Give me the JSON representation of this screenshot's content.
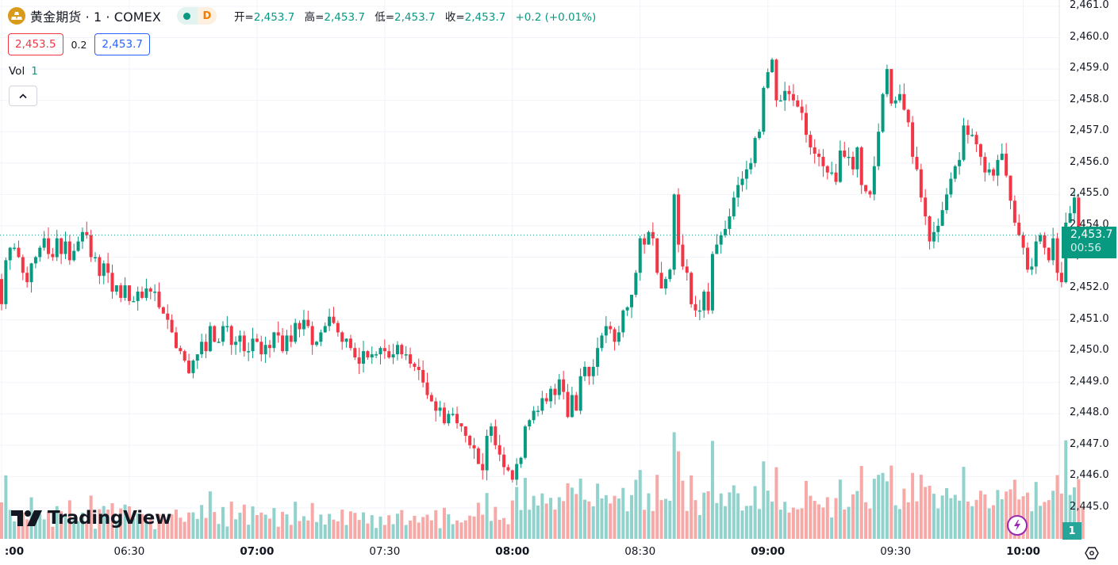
{
  "header": {
    "symbol_title": "黄金期货 · 1 · COMEX",
    "symbol_icon": "gold-bars-icon",
    "market_status": "live-dot-icon",
    "delay_badge": "D",
    "ohlc": {
      "open_label": "开=",
      "open": "2,453.7",
      "high_label": "高=",
      "high": "2,453.7",
      "low_label": "低=",
      "low": "2,453.7",
      "close_label": "收=",
      "close": "2,453.7",
      "change": "+0.2 (+0.01%)"
    }
  },
  "quotes": {
    "bid": "2,453.5",
    "spread": "0.2",
    "ask": "2,453.7"
  },
  "volume_legend": {
    "label": "Vol",
    "value": "1"
  },
  "last_price": {
    "price": "2,453.7",
    "countdown": "00:56",
    "value": 2453.7
  },
  "volume_tag": "1",
  "watermark": "TradingView",
  "colors": {
    "up": "#089981",
    "down": "#F23645",
    "vol_up": "#92d2cc",
    "vol_down": "#f7a9a7",
    "grid": "#f0f3fa",
    "purple": "#9c27b0"
  },
  "chart_data": {
    "type": "candlestick",
    "title": "黄金期货 · 1 · COMEX",
    "interval": "1 minute",
    "xlabel": "",
    "ylabel": "",
    "ylim": [
      2444.6,
      2461.2
    ],
    "y_ticks": [
      "2,461.0",
      "2,460.0",
      "2,459.0",
      "2,458.0",
      "2,457.0",
      "2,456.0",
      "2,455.0",
      "2,454.0",
      "2,453.0",
      "2,452.0",
      "2,451.0",
      "2,450.0",
      "2,449.0",
      "2,448.0",
      "2,447.0",
      "2,446.0",
      "2,445.0"
    ],
    "x_ticks": [
      {
        "label": ":00",
        "minute": 0,
        "major": true
      },
      {
        "label": "06:30",
        "minute": 30,
        "major": false
      },
      {
        "label": "07:00",
        "minute": 60,
        "major": true
      },
      {
        "label": "07:30",
        "minute": 90,
        "major": false
      },
      {
        "label": "08:00",
        "minute": 120,
        "major": true
      },
      {
        "label": "08:30",
        "minute": 150,
        "major": false
      },
      {
        "label": "09:00",
        "minute": 180,
        "major": true
      },
      {
        "label": "09:30",
        "minute": 210,
        "major": false
      },
      {
        "label": "10:00",
        "minute": 240,
        "major": true
      }
    ],
    "grid": true,
    "last_price_line": 2453.7,
    "closes": [
      2451.5,
      2452.9,
      2453.3,
      2453.3,
      2453.0,
      2452.5,
      2452.2,
      2452.8,
      2453.0,
      2453.3,
      2453.6,
      2453.1,
      2453.0,
      2453.6,
      2453.1,
      2453.5,
      2452.9,
      2453.2,
      2453.5,
      2453.8,
      2453.7,
      2453.0,
      2453.0,
      2452.4,
      2452.8,
      2452.5,
      2451.9,
      2452.1,
      2451.7,
      2452.1,
      2451.6,
      2451.6,
      2451.9,
      2451.7,
      2452.0,
      2451.9,
      2451.9,
      2451.4,
      2451.2,
      2451.0,
      2450.6,
      2450.1,
      2450.0,
      2449.7,
      2449.3,
      2449.7,
      2449.9,
      2450.3,
      2450.0,
      2450.8,
      2450.3,
      2450.3,
      2450.8,
      2450.8,
      2450.2,
      2450.3,
      2450.5,
      2450.0,
      2450.0,
      2450.4,
      2450.3,
      2449.9,
      2450.2,
      2450.1,
      2450.6,
      2450.5,
      2450.0,
      2450.5,
      2450.3,
      2450.9,
      2450.7,
      2451.0,
      2450.8,
      2450.2,
      2450.3,
      2450.6,
      2450.8,
      2451.1,
      2450.9,
      2450.6,
      2450.3,
      2450.4,
      2450.1,
      2449.8,
      2449.6,
      2450.0,
      2449.8,
      2449.9,
      2449.9,
      2450.1,
      2450.0,
      2449.8,
      2449.9,
      2450.2,
      2449.9,
      2449.9,
      2449.6,
      2449.5,
      2449.4,
      2449.0,
      2448.6,
      2448.4,
      2448.1,
      2448.2,
      2447.7,
      2448.0,
      2448.0,
      2447.7,
      2447.6,
      2447.3,
      2447.0,
      2446.9,
      2446.4,
      2446.2,
      2447.3,
      2447.6,
      2447.0,
      2446.7,
      2446.3,
      2446.2,
      2445.9,
      2446.4,
      2446.6,
      2447.6,
      2447.8,
      2448.1,
      2448.1,
      2448.5,
      2448.4,
      2448.8,
      2448.6,
      2449.1,
      2448.7,
      2447.9,
      2448.6,
      2448.1,
      2449.2,
      2449.5,
      2449.2,
      2449.5,
      2450.1,
      2450.5,
      2450.8,
      2450.7,
      2450.3,
      2450.6,
      2451.3,
      2451.4,
      2451.8,
      2452.5,
      2453.6,
      2453.4,
      2453.8,
      2453.6,
      2452.5,
      2452.0,
      2452.3,
      2452.6,
      2455.0,
      2453.4,
      2452.7,
      2452.5,
      2451.5,
      2451.3,
      2451.3,
      2451.9,
      2451.3,
      2453.1,
      2453.4,
      2453.7,
      2453.9,
      2454.3,
      2454.9,
      2455.3,
      2455.5,
      2455.8,
      2456.0,
      2456.8,
      2457.0,
      2458.4,
      2458.9,
      2459.3,
      2458.0,
      2458.0,
      2458.3,
      2458.2,
      2458.0,
      2457.8,
      2457.6,
      2456.9,
      2456.5,
      2456.3,
      2456.2,
      2455.9,
      2455.7,
      2455.7,
      2455.4,
      2456.4,
      2456.2,
      2456.2,
      2455.8,
      2456.5,
      2455.3,
      2455.1,
      2455.0,
      2455.9,
      2457.0,
      2458.2,
      2459.0,
      2457.9,
      2458.0,
      2458.2,
      2457.7,
      2457.3,
      2456.2,
      2455.8,
      2454.9,
      2454.3,
      2453.5,
      2453.8,
      2454.0,
      2454.5,
      2455.0,
      2455.5,
      2455.9,
      2456.1,
      2457.2,
      2456.9,
      2456.9,
      2456.6,
      2456.2,
      2455.7,
      2455.8,
      2455.6,
      2456.1,
      2456.3,
      2455.6,
      2454.8,
      2454.1,
      2453.7,
      2453.3,
      2452.6,
      2452.7,
      2453.5,
      2453.7,
      2453.3,
      2452.9,
      2453.6,
      2452.5,
      2452.2,
      2454.1,
      2454.4,
      2454.9,
      2453.9,
      2453.7
    ]
  }
}
